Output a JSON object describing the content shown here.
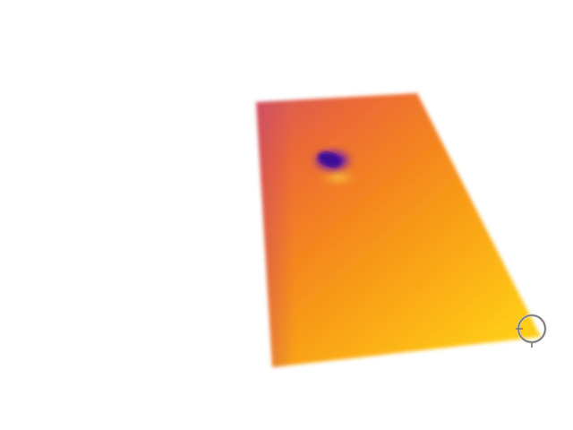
{
  "image": {
    "background_color": "#ffffff",
    "thermal_palette": {
      "cool": "#4a0fa0",
      "mid_cool": "#c04080",
      "warm": "#f07818",
      "hot": "#ffd21a"
    },
    "subject": "thermal-imaged-rectangular-slab",
    "hotspot": "cold-spot-purple",
    "cursor_icon": "crosshair-circle-icon"
  }
}
